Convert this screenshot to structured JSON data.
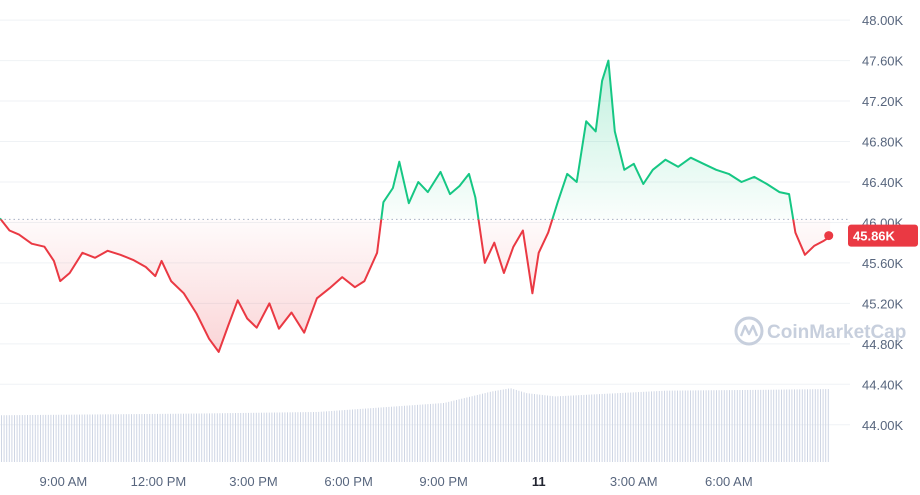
{
  "chart_data": {
    "type": "area",
    "watermark": "CoinMarketCap",
    "current_price_label": "45.86K",
    "colors": {
      "up": "#16c784",
      "down": "#ea3943",
      "grid": "#eff2f5",
      "volume": "#cfd6e4",
      "badge": "#ea3943",
      "baseline": "#a6b0c3"
    },
    "baseline": 46030,
    "ylim": [
      43800,
      48100
    ],
    "y_ticks": [
      {
        "value": 48000,
        "label": "48.00K"
      },
      {
        "value": 47600,
        "label": "47.60K"
      },
      {
        "value": 47200,
        "label": "47.20K"
      },
      {
        "value": 46800,
        "label": "46.80K"
      },
      {
        "value": 46400,
        "label": "46.40K"
      },
      {
        "value": 46000,
        "label": "46.00K"
      },
      {
        "value": 45600,
        "label": "45.60K"
      },
      {
        "value": 45200,
        "label": "45.20K"
      },
      {
        "value": 44800,
        "label": "44.80K"
      },
      {
        "value": 44400,
        "label": "44.40K"
      },
      {
        "value": 44000,
        "label": "44.00K"
      }
    ],
    "xlim": [
      7.0,
      33.35
    ],
    "x_ticks": [
      {
        "value": 9,
        "label": "9:00 AM",
        "bold": false
      },
      {
        "value": 12,
        "label": "12:00 PM",
        "bold": false
      },
      {
        "value": 15,
        "label": "3:00 PM",
        "bold": false
      },
      {
        "value": 18,
        "label": "6:00 PM",
        "bold": false
      },
      {
        "value": 21,
        "label": "9:00 PM",
        "bold": false
      },
      {
        "value": 24,
        "label": "11",
        "bold": true
      },
      {
        "value": 27,
        "label": "3:00 AM",
        "bold": false
      },
      {
        "value": 30,
        "label": "6:00 AM",
        "bold": false
      }
    ],
    "x_unit": "hours",
    "price": [
      [
        7.0,
        46040
      ],
      [
        7.3,
        45920
      ],
      [
        7.6,
        45880
      ],
      [
        8.0,
        45790
      ],
      [
        8.4,
        45760
      ],
      [
        8.7,
        45620
      ],
      [
        8.9,
        45420
      ],
      [
        9.2,
        45500
      ],
      [
        9.6,
        45700
      ],
      [
        10.0,
        45650
      ],
      [
        10.4,
        45720
      ],
      [
        10.8,
        45680
      ],
      [
        11.2,
        45630
      ],
      [
        11.6,
        45560
      ],
      [
        11.9,
        45470
      ],
      [
        12.1,
        45620
      ],
      [
        12.4,
        45420
      ],
      [
        12.8,
        45300
      ],
      [
        13.2,
        45100
      ],
      [
        13.6,
        44850
      ],
      [
        13.9,
        44720
      ],
      [
        14.2,
        44980
      ],
      [
        14.5,
        45230
      ],
      [
        14.8,
        45050
      ],
      [
        15.1,
        44960
      ],
      [
        15.5,
        45200
      ],
      [
        15.8,
        44950
      ],
      [
        16.2,
        45110
      ],
      [
        16.6,
        44910
      ],
      [
        17.0,
        45250
      ],
      [
        17.4,
        45350
      ],
      [
        17.8,
        45460
      ],
      [
        18.2,
        45360
      ],
      [
        18.5,
        45420
      ],
      [
        18.9,
        45700
      ],
      [
        19.1,
        46200
      ],
      [
        19.4,
        46340
      ],
      [
        19.6,
        46600
      ],
      [
        19.9,
        46190
      ],
      [
        20.2,
        46400
      ],
      [
        20.5,
        46300
      ],
      [
        20.9,
        46500
      ],
      [
        21.2,
        46280
      ],
      [
        21.5,
        46360
      ],
      [
        21.8,
        46480
      ],
      [
        22.0,
        46250
      ],
      [
        22.3,
        45600
      ],
      [
        22.6,
        45800
      ],
      [
        22.9,
        45500
      ],
      [
        23.2,
        45760
      ],
      [
        23.5,
        45920
      ],
      [
        23.8,
        45300
      ],
      [
        24.0,
        45700
      ],
      [
        24.3,
        45900
      ],
      [
        24.6,
        46200
      ],
      [
        24.9,
        46480
      ],
      [
        25.2,
        46400
      ],
      [
        25.5,
        47000
      ],
      [
        25.8,
        46900
      ],
      [
        26.0,
        47400
      ],
      [
        26.2,
        47600
      ],
      [
        26.4,
        46900
      ],
      [
        26.7,
        46520
      ],
      [
        27.0,
        46580
      ],
      [
        27.3,
        46380
      ],
      [
        27.6,
        46520
      ],
      [
        28.0,
        46620
      ],
      [
        28.4,
        46550
      ],
      [
        28.8,
        46640
      ],
      [
        29.2,
        46580
      ],
      [
        29.6,
        46520
      ],
      [
        30.0,
        46480
      ],
      [
        30.4,
        46400
      ],
      [
        30.8,
        46450
      ],
      [
        31.2,
        46380
      ],
      [
        31.6,
        46300
      ],
      [
        31.9,
        46280
      ],
      [
        32.1,
        45900
      ],
      [
        32.4,
        45680
      ],
      [
        32.7,
        45770
      ],
      [
        33.0,
        45820
      ],
      [
        33.2,
        45860
      ]
    ],
    "volume": [
      [
        7.0,
        0.57
      ],
      [
        13.0,
        0.59
      ],
      [
        17.0,
        0.61
      ],
      [
        21.0,
        0.72
      ],
      [
        22.5,
        0.86
      ],
      [
        23.1,
        0.9
      ],
      [
        23.6,
        0.84
      ],
      [
        24.5,
        0.8
      ],
      [
        26.0,
        0.83
      ],
      [
        28.0,
        0.87
      ],
      [
        31.0,
        0.88
      ],
      [
        33.2,
        0.89
      ]
    ]
  }
}
